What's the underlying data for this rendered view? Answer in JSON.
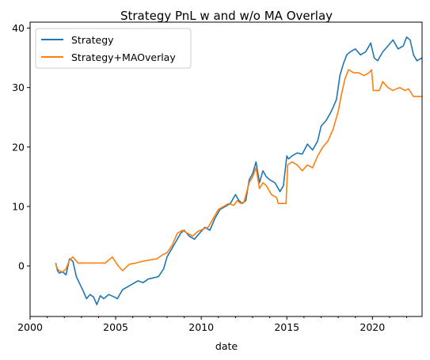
{
  "chart_data": {
    "type": "line",
    "title": "Strategy PnL w and w/o MA Overlay",
    "xlabel": "date",
    "ylabel": "",
    "xlim": [
      2000.0,
      2022.9
    ],
    "ylim": [
      -8.5,
      41
    ],
    "xticks": [
      2000,
      2005,
      2010,
      2015,
      2020
    ],
    "yticks": [
      0,
      10,
      20,
      30,
      40
    ],
    "grid": false,
    "legend_position": "top-left",
    "series": [
      {
        "name": "Strategy",
        "color": "#1f77b4",
        "x": [
          2001.5,
          2001.6,
          2001.7,
          2001.9,
          2002.1,
          2002.3,
          2002.5,
          2002.7,
          2002.9,
          2003.1,
          2003.3,
          2003.5,
          2003.7,
          2003.9,
          2004.1,
          2004.3,
          2004.6,
          2004.9,
          2005.1,
          2005.4,
          2005.7,
          2006.0,
          2006.3,
          2006.6,
          2006.9,
          2007.2,
          2007.5,
          2007.8,
          2008.0,
          2008.2,
          2008.5,
          2008.8,
          2009.0,
          2009.3,
          2009.6,
          2009.9,
          2010.2,
          2010.5,
          2010.8,
          2011.1,
          2011.4,
          2011.7,
          2012.0,
          2012.2,
          2012.4,
          2012.6,
          2012.8,
          2013.0,
          2013.2,
          2013.4,
          2013.6,
          2013.8,
          2014.0,
          2014.3,
          2014.6,
          2014.8,
          2015.0,
          2015.1,
          2015.3,
          2015.6,
          2015.9,
          2016.2,
          2016.5,
          2016.8,
          2017.0,
          2017.3,
          2017.6,
          2017.9,
          2018.1,
          2018.3,
          2018.5,
          2018.7,
          2019.0,
          2019.3,
          2019.6,
          2019.9,
          2020.1,
          2020.3,
          2020.6,
          2020.9,
          2021.2,
          2021.5,
          2021.8,
          2022.0,
          2022.2,
          2022.4,
          2022.6,
          2022.9
        ],
        "y": [
          0.5,
          -0.8,
          -1.2,
          -1.0,
          -1.5,
          1.2,
          0.8,
          -1.8,
          -3.0,
          -4.2,
          -5.5,
          -4.8,
          -5.2,
          -6.5,
          -5.0,
          -5.5,
          -4.8,
          -5.2,
          -5.5,
          -4.0,
          -3.5,
          -3.0,
          -2.5,
          -2.8,
          -2.2,
          -2.0,
          -1.8,
          -0.5,
          1.5,
          2.5,
          4.0,
          5.5,
          6.0,
          5.0,
          4.5,
          5.5,
          6.5,
          6.0,
          8.0,
          9.5,
          10.0,
          10.5,
          12.0,
          11.0,
          10.5,
          11.0,
          14.5,
          15.5,
          17.5,
          14.0,
          16.0,
          15.0,
          14.5,
          14.0,
          12.5,
          13.5,
          18.5,
          18.0,
          18.5,
          19.0,
          18.8,
          20.5,
          19.5,
          21.0,
          23.5,
          24.5,
          26.0,
          28.0,
          32.0,
          34.0,
          35.5,
          36.0,
          36.5,
          35.5,
          36.0,
          37.5,
          35.0,
          34.5,
          36.0,
          37.0,
          38.0,
          36.5,
          37.0,
          38.5,
          38.0,
          35.5,
          34.5,
          35.0
        ]
      },
      {
        "name": "Strategy+MAOverlay",
        "color": "#ff7f0e",
        "x": [
          2001.5,
          2001.6,
          2001.7,
          2001.9,
          2002.1,
          2002.3,
          2002.5,
          2002.8,
          2003.2,
          2003.6,
          2004.0,
          2004.4,
          2004.8,
          2005.1,
          2005.4,
          2005.8,
          2006.2,
          2006.6,
          2007.0,
          2007.4,
          2007.8,
          2008.0,
          2008.3,
          2008.6,
          2008.9,
          2009.2,
          2009.5,
          2009.8,
          2010.1,
          2010.4,
          2010.7,
          2011.0,
          2011.3,
          2011.6,
          2011.9,
          2012.1,
          2012.3,
          2012.5,
          2012.8,
          2013.0,
          2013.2,
          2013.4,
          2013.6,
          2013.8,
          2014.1,
          2014.4,
          2014.5,
          2014.8,
          2014.95,
          2015.05,
          2015.3,
          2015.6,
          2015.9,
          2016.2,
          2016.5,
          2016.8,
          2017.1,
          2017.4,
          2017.7,
          2018.0,
          2018.2,
          2018.4,
          2018.6,
          2018.9,
          2019.2,
          2019.5,
          2019.8,
          2019.95,
          2020.05,
          2020.4,
          2020.6,
          2020.9,
          2021.2,
          2021.4,
          2021.6,
          2021.9,
          2022.1,
          2022.4,
          2022.6,
          2022.9
        ],
        "y": [
          0.3,
          -0.5,
          -0.8,
          -1.0,
          -0.5,
          1.0,
          1.5,
          0.5,
          0.5,
          0.5,
          0.5,
          0.5,
          1.5,
          0.2,
          -0.8,
          0.3,
          0.5,
          0.8,
          1.0,
          1.2,
          2.0,
          2.2,
          3.5,
          5.5,
          6.0,
          5.5,
          5.0,
          5.8,
          6.2,
          6.5,
          8.0,
          9.5,
          10.0,
          10.5,
          10.2,
          11.0,
          10.5,
          10.8,
          14.0,
          15.0,
          16.5,
          13.0,
          14.0,
          13.5,
          12.0,
          11.5,
          10.5,
          10.5,
          10.5,
          17.0,
          17.5,
          17.0,
          16.0,
          17.0,
          16.5,
          18.5,
          20.0,
          21.0,
          23.0,
          26.0,
          29.0,
          31.5,
          33.0,
          32.5,
          32.5,
          32.0,
          32.5,
          33.0,
          29.5,
          29.5,
          31.0,
          30.0,
          29.5,
          29.8,
          30.0,
          29.5,
          29.8,
          28.5,
          28.5,
          28.5
        ]
      }
    ]
  }
}
